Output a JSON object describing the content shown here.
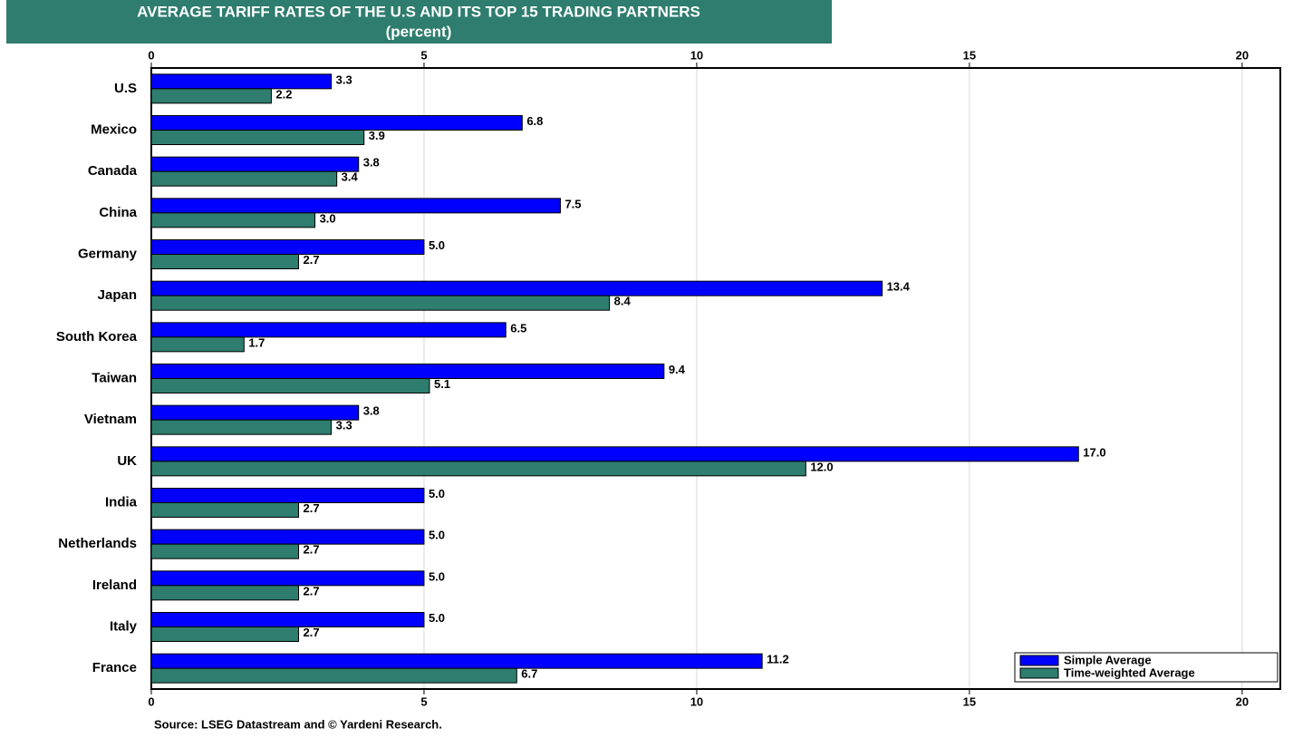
{
  "chart_data": {
    "type": "bar",
    "orientation": "horizontal",
    "title": "AVERAGE TARIFF RATES OF THE U.S AND ITS TOP 15 TRADING PARTNERS",
    "subtitle": "(percent)",
    "source": "Source: LSEG Datastream and © Yardeni Research.",
    "categories": [
      "U.S",
      "Mexico",
      "Canada",
      "China",
      "Germany",
      "Japan",
      "South Korea",
      "Taiwan",
      "Vietnam",
      "UK",
      "India",
      "Netherlands",
      "Ireland",
      "Italy",
      "France"
    ],
    "series": [
      {
        "name": "Simple Average",
        "color": "#0000ff",
        "values": [
          3.3,
          6.8,
          3.8,
          7.5,
          5.0,
          13.4,
          6.5,
          9.4,
          3.8,
          17.0,
          5.0,
          5.0,
          5.0,
          5.0,
          11.2
        ],
        "value_labels": [
          "3.3",
          "6.8",
          "3.8",
          "7.5",
          "5.0",
          "13.4",
          "6.5",
          "9.4",
          "3.8",
          "17.0",
          "5.0",
          "5.0",
          "5.0",
          "5.0",
          "11.2"
        ]
      },
      {
        "name": "Time-weighted Average",
        "color": "#2e7d6f",
        "values": [
          2.2,
          3.9,
          3.4,
          3.0,
          2.7,
          8.4,
          1.7,
          5.1,
          3.3,
          12.0,
          2.7,
          2.7,
          2.7,
          2.7,
          6.7
        ],
        "value_labels": [
          "2.2",
          "3.9",
          "3.4",
          "3.0",
          "2.7",
          "8.4",
          "1.7",
          "5.1",
          "3.3",
          "12.0",
          "2.7",
          "2.7",
          "2.7",
          "2.7",
          "6.7"
        ]
      }
    ],
    "xlim": [
      0,
      20.7
    ],
    "xticks": [
      0,
      5,
      10,
      15,
      20
    ],
    "grid": true,
    "legend": "bottom-right"
  }
}
